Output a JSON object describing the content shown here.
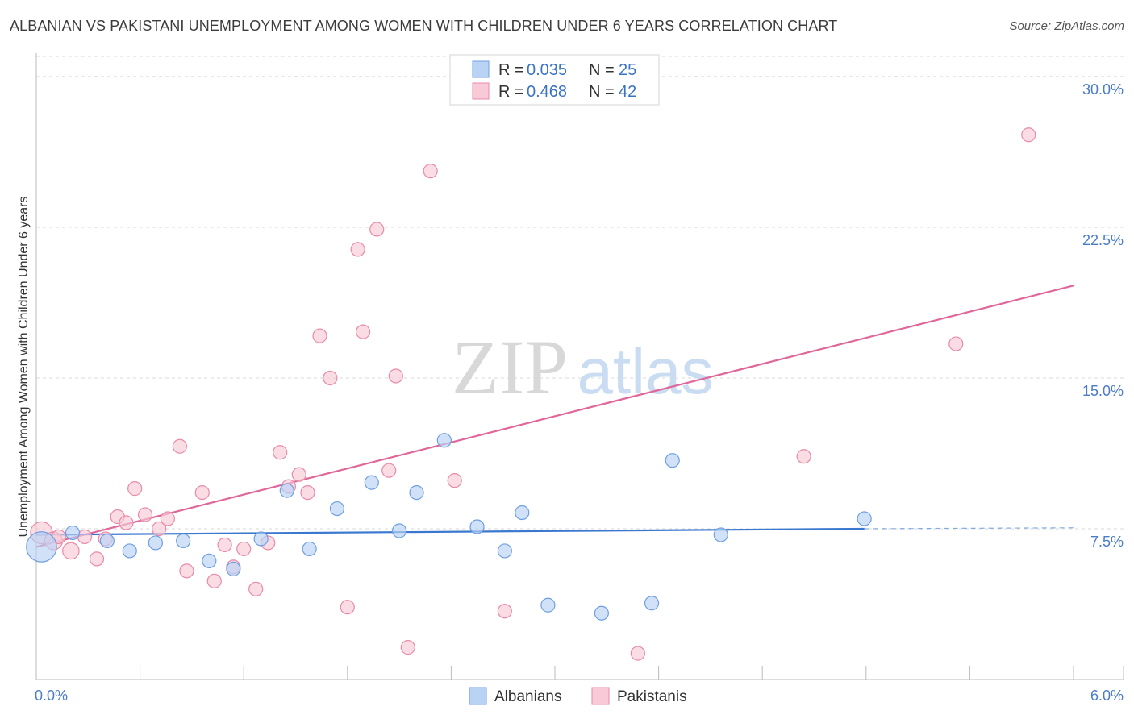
{
  "title": "ALBANIAN VS PAKISTANI UNEMPLOYMENT AMONG WOMEN WITH CHILDREN UNDER 6 YEARS CORRELATION CHART",
  "source": "Source: ZipAtlas.com",
  "watermark": {
    "zip": "ZIP",
    "atlas": "atlas"
  },
  "legend_top": [
    {
      "r_label": "R = ",
      "r_value": "0.035",
      "n_label": "N = ",
      "n_value": "25"
    },
    {
      "r_label": "R = ",
      "r_value": "0.468",
      "n_label": "N = ",
      "n_value": "42"
    }
  ],
  "colors": {
    "albanian_fill": "#b9d3f5",
    "albanian_stroke": "#6f9fe0",
    "albanian_line": "#3a78d0",
    "pakistani_fill": "#f8c9d7",
    "pakistani_stroke": "#e98aa8",
    "pakistani_line": "#e0679a",
    "grid": "#d9d9d9",
    "tick_label": "#4a7cc9"
  },
  "chart_data": {
    "type": "scatter",
    "title": "ALBANIAN VS PAKISTANI UNEMPLOYMENT AMONG WOMEN WITH CHILDREN UNDER 6 YEARS CORRELATION CHART",
    "xlabel": "",
    "ylabel": "Unemployment Among Women with Children Under 6 years",
    "xlim": [
      0,
      6.0
    ],
    "ylim": [
      0,
      31.0
    ],
    "x_tick_labels": [
      "0.0%",
      "6.0%"
    ],
    "y_ticks": [
      7.5,
      15.0,
      22.5,
      30.0
    ],
    "y_tick_labels": [
      "7.5%",
      "15.0%",
      "22.5%",
      "30.0%"
    ],
    "series": [
      {
        "name": "Albanians",
        "points": [
          [
            0.03,
            6.6,
            2.2
          ],
          [
            0.21,
            7.3,
            1
          ],
          [
            0.41,
            6.9,
            1
          ],
          [
            0.54,
            6.4,
            1
          ],
          [
            0.69,
            6.8,
            1
          ],
          [
            0.85,
            6.9,
            1
          ],
          [
            1.0,
            5.9,
            1
          ],
          [
            1.14,
            5.5,
            1
          ],
          [
            1.3,
            7.0,
            1
          ],
          [
            1.45,
            9.4,
            1
          ],
          [
            1.58,
            6.5,
            1
          ],
          [
            1.74,
            8.5,
            1
          ],
          [
            1.94,
            9.8,
            1
          ],
          [
            2.1,
            7.4,
            1
          ],
          [
            2.2,
            9.3,
            1
          ],
          [
            2.36,
            11.9,
            1
          ],
          [
            2.55,
            7.6,
            1
          ],
          [
            2.71,
            6.4,
            1
          ],
          [
            2.81,
            8.3,
            1
          ],
          [
            2.96,
            3.7,
            1
          ],
          [
            3.27,
            3.3,
            1
          ],
          [
            3.56,
            3.8,
            1
          ],
          [
            3.68,
            10.9,
            1
          ],
          [
            3.96,
            7.2,
            1
          ],
          [
            4.79,
            8.0,
            1
          ]
        ],
        "trend": {
          "x0": 0.0,
          "y0": 7.2,
          "x1": 4.79,
          "y1": 7.5,
          "dash_to_x": 6.0,
          "dash_to_y": 7.55
        }
      },
      {
        "name": "Pakistanis",
        "points": [
          [
            0.03,
            7.3,
            1.6
          ],
          [
            0.1,
            6.9,
            1.3
          ],
          [
            0.13,
            7.1,
            1
          ],
          [
            0.2,
            6.4,
            1.2
          ],
          [
            0.28,
            7.1,
            1
          ],
          [
            0.35,
            6.0,
            1
          ],
          [
            0.4,
            7.0,
            1
          ],
          [
            0.47,
            8.1,
            1
          ],
          [
            0.52,
            7.8,
            1
          ],
          [
            0.57,
            9.5,
            1
          ],
          [
            0.63,
            8.2,
            1
          ],
          [
            0.71,
            7.5,
            1
          ],
          [
            0.76,
            8.0,
            1
          ],
          [
            0.83,
            11.6,
            1
          ],
          [
            0.87,
            5.4,
            1
          ],
          [
            0.96,
            9.3,
            1
          ],
          [
            1.03,
            4.9,
            1
          ],
          [
            1.09,
            6.7,
            1
          ],
          [
            1.14,
            5.6,
            1
          ],
          [
            1.2,
            6.5,
            1
          ],
          [
            1.27,
            4.5,
            1
          ],
          [
            1.34,
            6.8,
            1
          ],
          [
            1.41,
            11.3,
            1
          ],
          [
            1.46,
            9.6,
            1
          ],
          [
            1.52,
            10.2,
            1
          ],
          [
            1.57,
            9.3,
            1
          ],
          [
            1.64,
            17.1,
            1
          ],
          [
            1.7,
            15.0,
            1
          ],
          [
            1.8,
            3.6,
            1
          ],
          [
            1.86,
            21.4,
            1
          ],
          [
            1.89,
            17.3,
            1
          ],
          [
            1.97,
            22.4,
            1
          ],
          [
            2.04,
            10.4,
            1
          ],
          [
            2.08,
            15.1,
            1
          ],
          [
            2.15,
            1.6,
            1
          ],
          [
            2.28,
            25.3,
            1
          ],
          [
            2.42,
            9.9,
            1
          ],
          [
            2.71,
            3.4,
            1
          ],
          [
            3.48,
            1.3,
            1
          ],
          [
            4.44,
            11.1,
            1
          ],
          [
            5.32,
            16.7,
            1
          ],
          [
            5.74,
            27.1,
            1
          ]
        ],
        "trend": {
          "x0": 0.0,
          "y0": 6.6,
          "x1": 6.0,
          "y1": 19.6
        }
      }
    ],
    "legend": [
      "Albanians",
      "Pakistanis"
    ]
  }
}
